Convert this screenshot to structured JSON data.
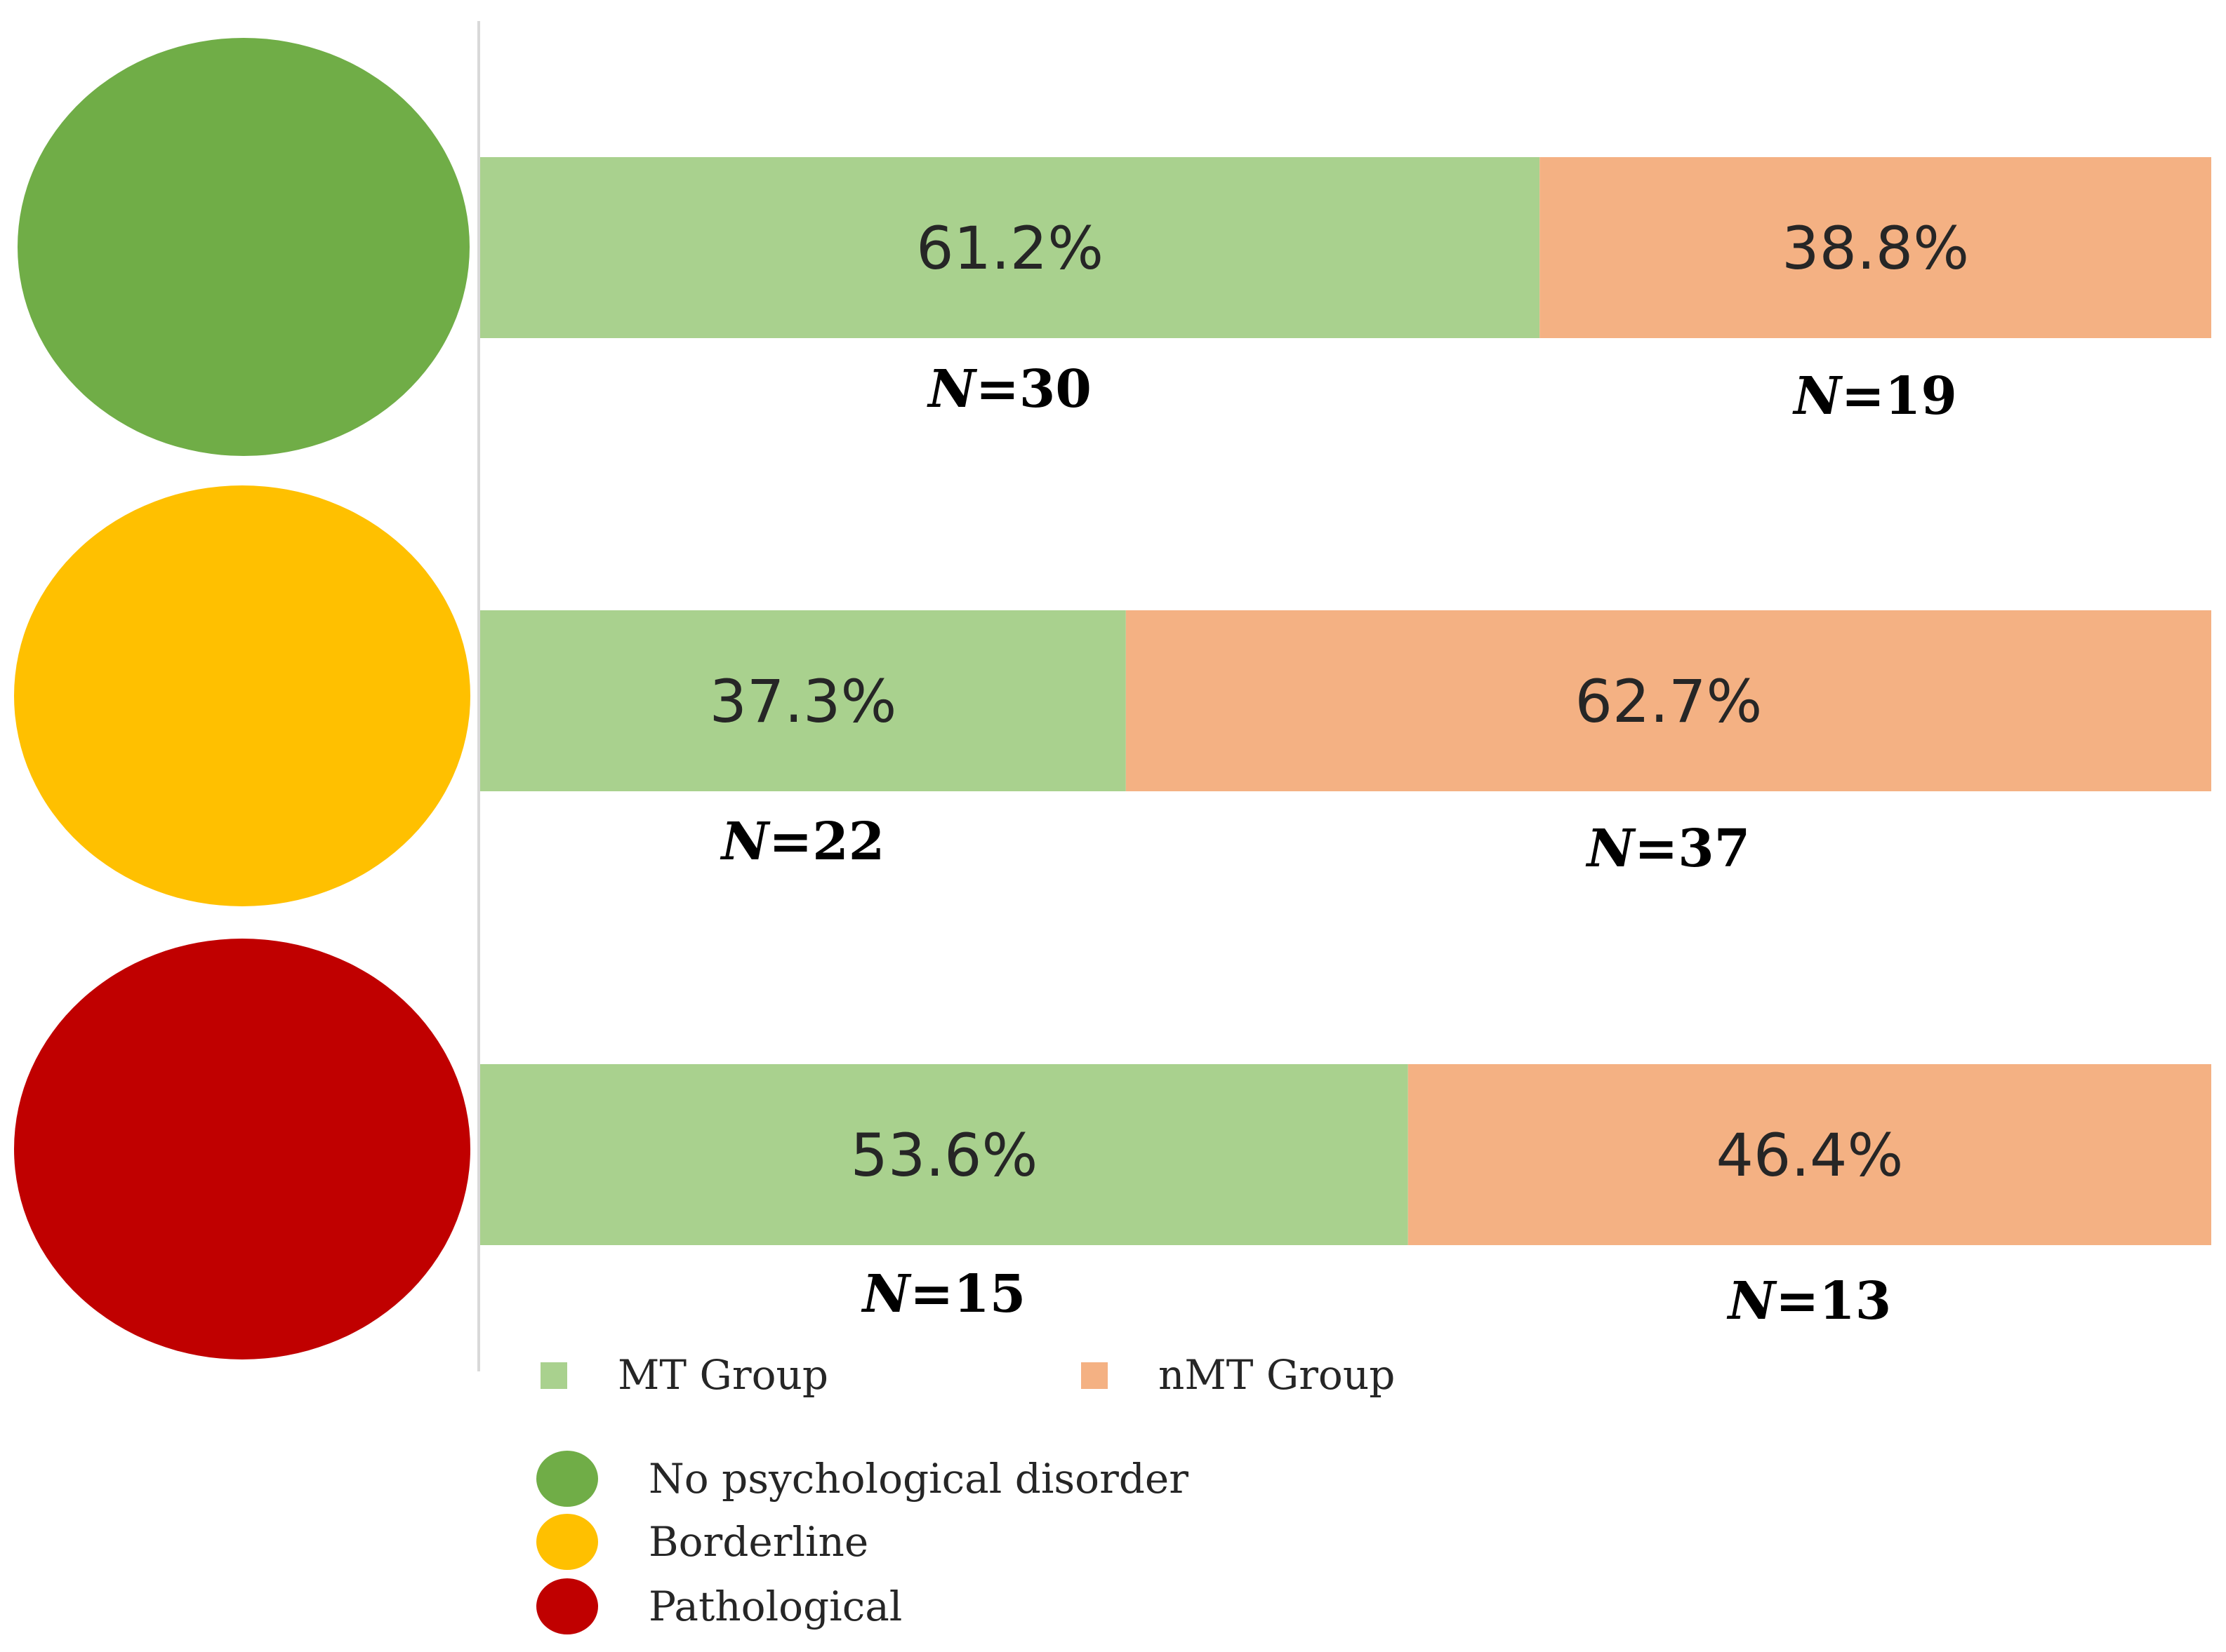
{
  "chart_data": {
    "type": "bar",
    "orientation": "horizontal",
    "stacked": true,
    "normalized_percent": true,
    "categories": [
      "No psychological disorder",
      "Borderline",
      "Pathological"
    ],
    "category_colors": [
      "#70ad47",
      "#ffc000",
      "#c00000"
    ],
    "series": [
      {
        "name": "MT Group",
        "color": "#a9d18e",
        "values": [
          61.2,
          37.3,
          53.6
        ],
        "value_labels": [
          "61.2%",
          "37.3%",
          "53.6%"
        ],
        "n_values": [
          30,
          22,
          15
        ]
      },
      {
        "name": "nMT Group",
        "color": "#f4b183",
        "values": [
          38.8,
          62.7,
          46.4
        ],
        "value_labels": [
          "38.8%",
          "62.7%",
          "46.4%"
        ],
        "n_values": [
          19,
          37,
          13
        ]
      }
    ],
    "n_prefix": "N",
    "xlim": [
      0,
      100
    ],
    "title": "",
    "xlabel": "",
    "ylabel": "",
    "grid": false,
    "legend_series": [
      "MT Group",
      "nMT Group"
    ],
    "legend_categories": [
      "No psychological disorder",
      "Borderline",
      "Pathological"
    ]
  }
}
